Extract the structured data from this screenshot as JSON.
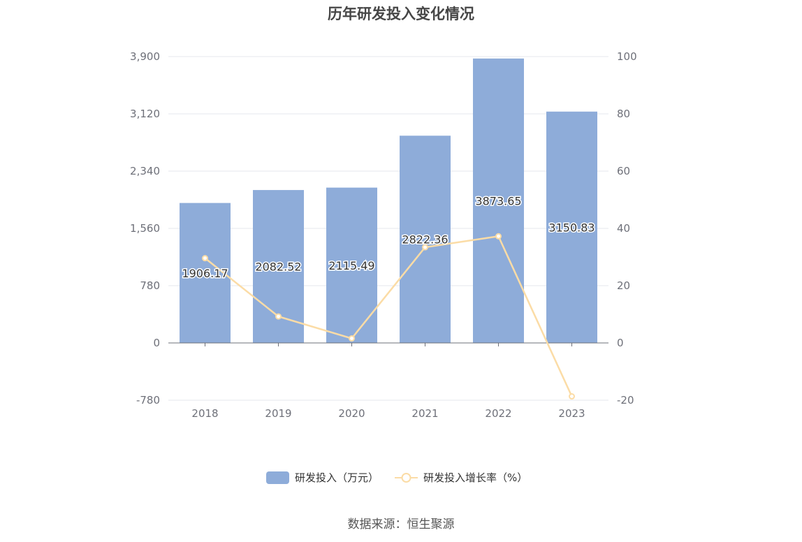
{
  "title": "历年研发投入变化情况",
  "source": "数据来源：恒生聚源",
  "colors": {
    "bar": "#8eacd9",
    "line": "#fbdca6",
    "grid": "#e4e7ee",
    "axis": "#6e7079"
  },
  "chart_data": {
    "type": "bar",
    "title": "历年研发投入变化情况",
    "categories": [
      "2018",
      "2019",
      "2020",
      "2021",
      "2022",
      "2023"
    ],
    "series": [
      {
        "name": "研发投入（万元）",
        "type": "bar",
        "axis": "left",
        "values": [
          1906.17,
          2082.52,
          2115.49,
          2822.36,
          3873.65,
          3150.83
        ],
        "labels": [
          "1906.17",
          "2082.52",
          "2115.49",
          "2822.36",
          "3873.65",
          "3150.83"
        ]
      },
      {
        "name": "研发投入增长率（%）",
        "type": "line",
        "axis": "right",
        "values": [
          29.6,
          9.25,
          1.58,
          33.41,
          37.25,
          -18.66
        ]
      }
    ],
    "y_left": {
      "min": -780,
      "max": 3900,
      "ticks": [
        "-780",
        "0",
        "780",
        "1,560",
        "2,340",
        "3,120",
        "3,900"
      ]
    },
    "y_right": {
      "min": -20,
      "max": 100,
      "ticks": [
        "-20",
        "0",
        "20",
        "40",
        "60",
        "80",
        "100"
      ]
    },
    "grid": true,
    "legend_position": "bottom"
  }
}
